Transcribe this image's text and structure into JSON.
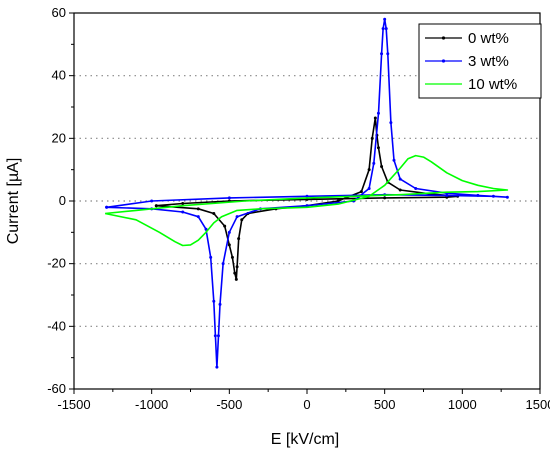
{
  "chart_data": {
    "type": "line",
    "title": "",
    "xlabel": "E [kV/cm]",
    "ylabel": "Current [µA]",
    "xlim": [
      -1500,
      1500
    ],
    "ylim": [
      -60,
      60
    ],
    "xticks": [
      -1500,
      -1000,
      -500,
      0,
      500,
      1000,
      1500
    ],
    "yticks": [
      -60,
      -40,
      -20,
      0,
      20,
      40,
      60
    ],
    "grid": "horizontal dotted at y = 40, 20, 0, -20, -40",
    "legend_position": "top-right",
    "series": [
      {
        "name": "0 wt%",
        "color": "#000000",
        "markers": true,
        "x": [
          -970,
          -700,
          -600,
          -530,
          -500,
          -480,
          -465,
          -455,
          -450,
          -440,
          -420,
          -380,
          -200,
          0,
          200,
          350,
          400,
          420,
          440,
          450,
          460,
          480,
          520,
          600,
          800,
          970,
          900,
          500,
          0,
          -500,
          -800,
          -970
        ],
        "y": [
          -1.5,
          -2.5,
          -4,
          -8,
          -14,
          -18,
          -23,
          -25,
          -21,
          -12,
          -6,
          -4,
          -2.5,
          -1.5,
          0,
          3,
          10,
          20,
          26.5,
          21,
          17,
          11,
          6,
          3.5,
          2.2,
          1.5,
          1.2,
          1,
          0.5,
          0,
          -0.8,
          -1.5
        ]
      },
      {
        "name": "3 wt%",
        "color": "#0000ff",
        "markers": true,
        "x": [
          -1290,
          -1000,
          -800,
          -700,
          -650,
          -620,
          -600,
          -590,
          -580,
          -570,
          -560,
          -540,
          -500,
          -450,
          -300,
          0,
          300,
          400,
          430,
          460,
          480,
          490,
          500,
          510,
          520,
          540,
          560,
          600,
          700,
          900,
          1100,
          1290,
          1200,
          900,
          500,
          0,
          -500,
          -1000,
          -1290
        ],
        "y": [
          -2,
          -2.5,
          -3.5,
          -5,
          -9,
          -18,
          -32,
          -43,
          -53,
          -43,
          -33,
          -20,
          -10,
          -5,
          -2.5,
          -1.5,
          0,
          4,
          12,
          28,
          47,
          55,
          58,
          55,
          47,
          25,
          13,
          7,
          4,
          2.5,
          1.8,
          1.2,
          1.5,
          1.8,
          2,
          1.5,
          1,
          0,
          -2
        ]
      },
      {
        "name": "10 wt%",
        "color": "#00ff00",
        "markers": false,
        "x": [
          -1300,
          -1100,
          -950,
          -850,
          -800,
          -750,
          -700,
          -650,
          -600,
          -550,
          -450,
          -300,
          0,
          200,
          400,
          500,
          600,
          650,
          700,
          750,
          800,
          900,
          1000,
          1100,
          1200,
          1290,
          1100,
          900,
          600,
          300,
          0,
          -400,
          -800,
          -1100,
          -1300
        ],
        "y": [
          -4,
          -6,
          -10,
          -13,
          -14.2,
          -14,
          -12.5,
          -10,
          -7,
          -5,
          -3,
          -2.5,
          -2,
          -1,
          1.5,
          5,
          10.5,
          13.5,
          14.5,
          14,
          12.5,
          9,
          6.5,
          5,
          4,
          3.5,
          3,
          2.8,
          2,
          1.5,
          1,
          0,
          -1.5,
          -3,
          -4
        ]
      }
    ]
  }
}
